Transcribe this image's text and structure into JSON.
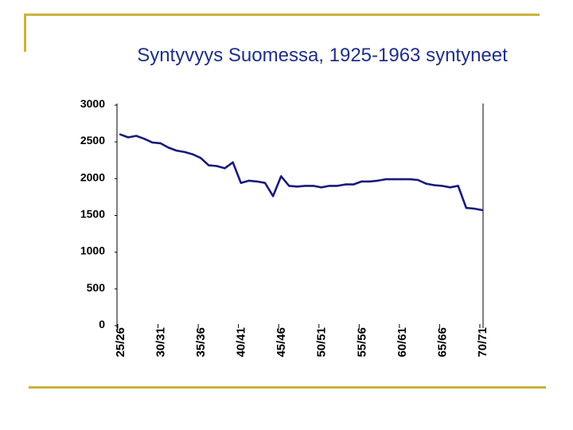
{
  "slide": {
    "title": "Syntyvyys Suomessa, 1925-1963 syntyneet"
  },
  "theme": {
    "accent": "#c9b33c",
    "title_color": "#1f2f86",
    "line_color": "#1a1a7a"
  },
  "chart_data": {
    "type": "line",
    "title": "",
    "xlabel": "",
    "ylabel": "",
    "ylim": [
      0,
      3000
    ],
    "yticks": [
      0,
      500,
      1000,
      1500,
      2000,
      2500,
      3000
    ],
    "xtick_labels": [
      "25/26",
      "30/31",
      "35/36",
      "40/41",
      "45/46",
      "50/51",
      "55/56",
      "60/61",
      "65/66",
      "70/71"
    ],
    "grid": false,
    "series": [
      {
        "values": [
          2580,
          2540,
          2560,
          2520,
          2470,
          2460,
          2400,
          2360,
          2340,
          2310,
          2260,
          2160,
          2150,
          2120,
          2200,
          1920,
          1950,
          1940,
          1920,
          1740,
          2010,
          1880,
          1870,
          1880,
          1880,
          1860,
          1880,
          1880,
          1900,
          1900,
          1940,
          1940,
          1950,
          1970,
          1970,
          1970,
          1970,
          1960,
          1910,
          1890,
          1880,
          1860,
          1880,
          1580,
          1570,
          1550
        ]
      }
    ]
  }
}
